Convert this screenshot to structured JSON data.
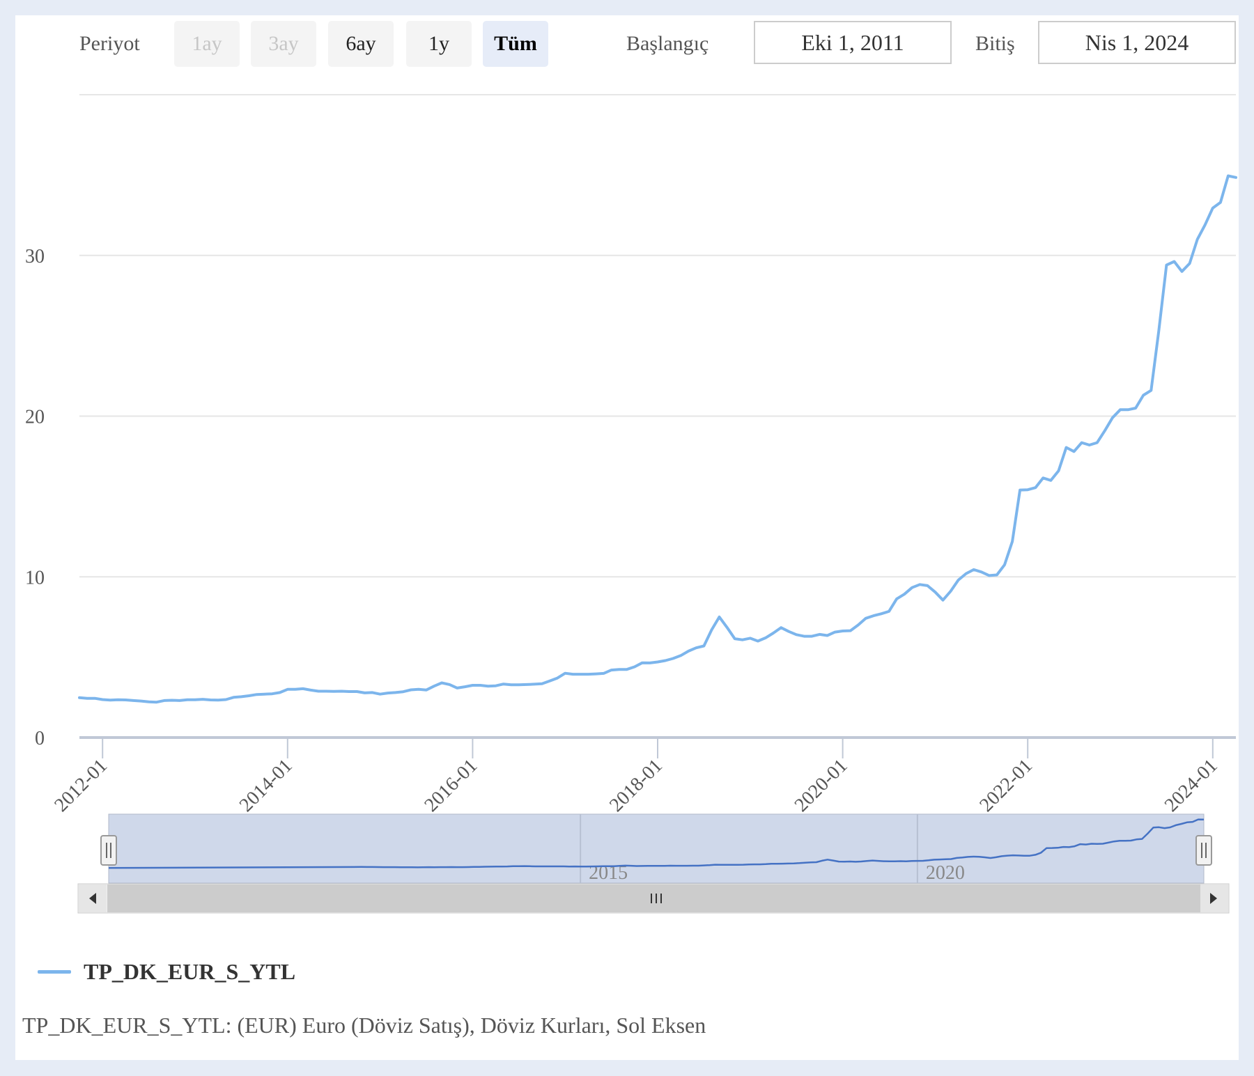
{
  "range_selector": {
    "label": "Periyot",
    "buttons": [
      {
        "label": "1ay",
        "state": "disabled"
      },
      {
        "label": "3ay",
        "state": "disabled"
      },
      {
        "label": "6ay",
        "state": "normal"
      },
      {
        "label": "1y",
        "state": "normal"
      },
      {
        "label": "Tüm",
        "state": "active"
      }
    ],
    "from_label": "Başlangıç",
    "from_value": "Eki 1, 2011",
    "to_label": "Bitiş",
    "to_value": "Nis 1, 2024"
  },
  "navigator": {
    "year_labels": [
      "2015",
      "2020"
    ],
    "scroll_icon": "grip-lines-icon",
    "left_arrow_icon": "triangle-left-icon",
    "right_arrow_icon": "triangle-right-icon",
    "handle_icon": "handle-grip-icon"
  },
  "legend": {
    "label": "TP_DK_EUR_S_YTL"
  },
  "caption": "TP_DK_EUR_S_YTL: (EUR) Euro (Döviz Satış), Döviz Kurları, Sol Eksen",
  "colors": {
    "series": "#7cb5ec",
    "navigator_series": "#4572c4",
    "navigator_mask": "#cfd8ea",
    "background": "#e6ecf6"
  },
  "chart_data": {
    "type": "line",
    "title": "",
    "xlabel": "",
    "ylabel": "",
    "ylim": [
      0,
      40
    ],
    "y_ticks": [
      "0",
      "10",
      "20",
      "30"
    ],
    "x_ticks": [
      "2012-01",
      "2014-01",
      "2016-01",
      "2018-01",
      "2020-01",
      "2022-01",
      "2024-01"
    ],
    "x_range": [
      "2011-10",
      "2024-04"
    ],
    "grid": true,
    "legend_position": "bottom-left",
    "series": [
      {
        "name": "TP_DK_EUR_S_YTL",
        "points": [
          [
            "2011-10",
            2.48
          ],
          [
            "2011-11",
            2.44
          ],
          [
            "2011-12",
            2.44
          ],
          [
            "2012-01",
            2.36
          ],
          [
            "2012-02",
            2.33
          ],
          [
            "2012-03",
            2.35
          ],
          [
            "2012-04",
            2.34
          ],
          [
            "2012-05",
            2.3
          ],
          [
            "2012-06",
            2.27
          ],
          [
            "2012-07",
            2.22
          ],
          [
            "2012-08",
            2.2
          ],
          [
            "2012-09",
            2.3
          ],
          [
            "2012-10",
            2.32
          ],
          [
            "2012-11",
            2.3
          ],
          [
            "2012-12",
            2.35
          ],
          [
            "2013-01",
            2.35
          ],
          [
            "2013-02",
            2.38
          ],
          [
            "2013-03",
            2.34
          ],
          [
            "2013-04",
            2.33
          ],
          [
            "2013-05",
            2.36
          ],
          [
            "2013-06",
            2.5
          ],
          [
            "2013-07",
            2.54
          ],
          [
            "2013-08",
            2.6
          ],
          [
            "2013-09",
            2.68
          ],
          [
            "2013-10",
            2.7
          ],
          [
            "2013-11",
            2.72
          ],
          [
            "2013-12",
            2.8
          ],
          [
            "2014-01",
            3.0
          ],
          [
            "2014-02",
            3.0
          ],
          [
            "2014-03",
            3.04
          ],
          [
            "2014-04",
            2.95
          ],
          [
            "2014-05",
            2.88
          ],
          [
            "2014-06",
            2.88
          ],
          [
            "2014-07",
            2.87
          ],
          [
            "2014-08",
            2.88
          ],
          [
            "2014-09",
            2.86
          ],
          [
            "2014-10",
            2.86
          ],
          [
            "2014-11",
            2.78
          ],
          [
            "2014-12",
            2.8
          ],
          [
            "2015-01",
            2.7
          ],
          [
            "2015-02",
            2.77
          ],
          [
            "2015-03",
            2.8
          ],
          [
            "2015-04",
            2.85
          ],
          [
            "2015-05",
            2.97
          ],
          [
            "2015-06",
            3.0
          ],
          [
            "2015-07",
            2.96
          ],
          [
            "2015-08",
            3.2
          ],
          [
            "2015-09",
            3.4
          ],
          [
            "2015-10",
            3.3
          ],
          [
            "2015-11",
            3.08
          ],
          [
            "2015-12",
            3.16
          ],
          [
            "2016-01",
            3.25
          ],
          [
            "2016-02",
            3.25
          ],
          [
            "2016-03",
            3.2
          ],
          [
            "2016-04",
            3.22
          ],
          [
            "2016-05",
            3.33
          ],
          [
            "2016-06",
            3.28
          ],
          [
            "2016-07",
            3.28
          ],
          [
            "2016-08",
            3.3
          ],
          [
            "2016-09",
            3.32
          ],
          [
            "2016-10",
            3.35
          ],
          [
            "2016-11",
            3.52
          ],
          [
            "2016-12",
            3.7
          ],
          [
            "2017-01",
            4.0
          ],
          [
            "2017-02",
            3.94
          ],
          [
            "2017-03",
            3.94
          ],
          [
            "2017-04",
            3.94
          ],
          [
            "2017-05",
            3.96
          ],
          [
            "2017-06",
            3.99
          ],
          [
            "2017-07",
            4.2
          ],
          [
            "2017-08",
            4.24
          ],
          [
            "2017-09",
            4.24
          ],
          [
            "2017-10",
            4.4
          ],
          [
            "2017-11",
            4.65
          ],
          [
            "2017-12",
            4.64
          ],
          [
            "2018-01",
            4.7
          ],
          [
            "2018-02",
            4.79
          ],
          [
            "2018-03",
            4.92
          ],
          [
            "2018-04",
            5.1
          ],
          [
            "2018-05",
            5.38
          ],
          [
            "2018-06",
            5.58
          ],
          [
            "2018-07",
            5.7
          ],
          [
            "2018-08",
            6.7
          ],
          [
            "2018-09",
            7.5
          ],
          [
            "2018-10",
            6.85
          ],
          [
            "2018-11",
            6.15
          ],
          [
            "2018-12",
            6.08
          ],
          [
            "2019-01",
            6.18
          ],
          [
            "2019-02",
            6.0
          ],
          [
            "2019-03",
            6.2
          ],
          [
            "2019-04",
            6.5
          ],
          [
            "2019-05",
            6.84
          ],
          [
            "2019-06",
            6.6
          ],
          [
            "2019-07",
            6.4
          ],
          [
            "2019-08",
            6.3
          ],
          [
            "2019-09",
            6.3
          ],
          [
            "2019-10",
            6.42
          ],
          [
            "2019-11",
            6.35
          ],
          [
            "2019-12",
            6.56
          ],
          [
            "2020-01",
            6.63
          ],
          [
            "2020-02",
            6.65
          ],
          [
            "2020-03",
            7.0
          ],
          [
            "2020-04",
            7.42
          ],
          [
            "2020-05",
            7.58
          ],
          [
            "2020-06",
            7.7
          ],
          [
            "2020-07",
            7.85
          ],
          [
            "2020-08",
            8.63
          ],
          [
            "2020-09",
            8.92
          ],
          [
            "2020-10",
            9.33
          ],
          [
            "2020-11",
            9.52
          ],
          [
            "2020-12",
            9.45
          ],
          [
            "2021-01",
            9.05
          ],
          [
            "2021-02",
            8.55
          ],
          [
            "2021-03",
            9.1
          ],
          [
            "2021-04",
            9.8
          ],
          [
            "2021-05",
            10.2
          ],
          [
            "2021-06",
            10.45
          ],
          [
            "2021-07",
            10.3
          ],
          [
            "2021-08",
            10.08
          ],
          [
            "2021-09",
            10.12
          ],
          [
            "2021-10",
            10.75
          ],
          [
            "2021-11",
            12.2
          ],
          [
            "2021-12",
            15.4
          ],
          [
            "2022-01",
            15.42
          ],
          [
            "2022-02",
            15.55
          ],
          [
            "2022-03",
            16.15
          ],
          [
            "2022-04",
            16.0
          ],
          [
            "2022-05",
            16.6
          ],
          [
            "2022-06",
            18.05
          ],
          [
            "2022-07",
            17.8
          ],
          [
            "2022-08",
            18.35
          ],
          [
            "2022-09",
            18.2
          ],
          [
            "2022-10",
            18.35
          ],
          [
            "2022-11",
            19.1
          ],
          [
            "2022-12",
            19.9
          ],
          [
            "2023-01",
            20.4
          ],
          [
            "2023-02",
            20.4
          ],
          [
            "2023-03",
            20.5
          ],
          [
            "2023-04",
            21.3
          ],
          [
            "2023-05",
            21.6
          ],
          [
            "2023-06",
            25.3
          ],
          [
            "2023-07",
            29.4
          ],
          [
            "2023-08",
            29.62
          ],
          [
            "2023-09",
            29.0
          ],
          [
            "2023-10",
            29.5
          ],
          [
            "2023-11",
            31.0
          ],
          [
            "2023-12",
            31.9
          ],
          [
            "2024-01",
            32.95
          ],
          [
            "2024-02",
            33.3
          ],
          [
            "2024-03",
            34.95
          ],
          [
            "2024-04",
            34.85
          ]
        ]
      }
    ]
  }
}
